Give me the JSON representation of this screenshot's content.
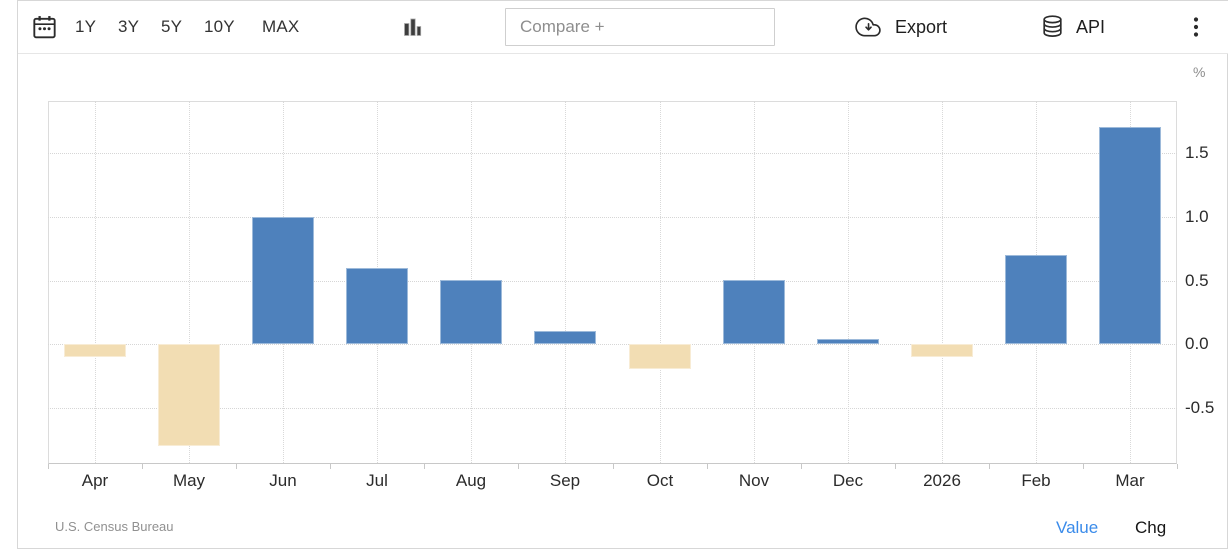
{
  "toolbar": {
    "range_buttons": [
      "1Y",
      "3Y",
      "5Y",
      "10Y",
      "MAX"
    ],
    "compare_placeholder": "Compare +",
    "export_label": "Export",
    "api_label": "API",
    "icons": {
      "calendar": "calendar-icon",
      "chart_type": "bar-chart-icon",
      "export": "cloud-download-icon",
      "api": "database-icon",
      "menu": "kebab-menu-icon"
    }
  },
  "chart_data": {
    "type": "bar",
    "categories": [
      "Apr",
      "May",
      "Jun",
      "Jul",
      "Aug",
      "Sep",
      "Oct",
      "Nov",
      "Dec",
      "2026",
      "Feb",
      "Mar"
    ],
    "values": [
      -0.1,
      -0.8,
      1.0,
      0.6,
      0.5,
      0.1,
      -0.2,
      0.5,
      0.04,
      -0.1,
      0.7,
      1.7
    ],
    "unit_label": "%",
    "ytick_labels": [
      "1.5",
      "1.0",
      "0.5",
      "0.0",
      "-0.5"
    ],
    "ylim": [
      -0.93,
      1.91
    ],
    "grid": true,
    "legend": "none",
    "positive_color": "#4e81bc",
    "negative_color": "#f2ddb3",
    "source": "U.S. Census Bureau"
  },
  "footer": {
    "source_label": "U.S. Census Bureau",
    "value_label": "Value",
    "chg_label": "Chg",
    "value_link_color": "#3a8bea",
    "chg_link_color": "#161616"
  }
}
